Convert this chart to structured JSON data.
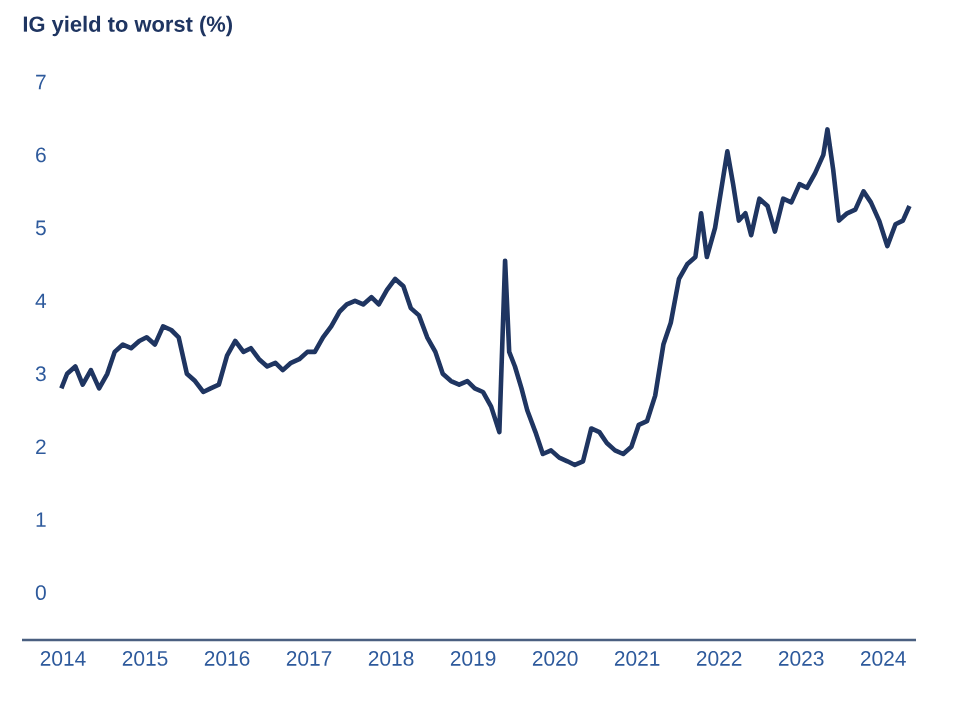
{
  "chart_data": {
    "type": "line",
    "title": "IG yield to worst (%)",
    "x": [
      2013.98,
      2014.05,
      2014.15,
      2014.24,
      2014.34,
      2014.44,
      2014.54,
      2014.63,
      2014.73,
      2014.83,
      2014.93,
      2015.02,
      2015.12,
      2015.22,
      2015.32,
      2015.41,
      2015.51,
      2015.61,
      2015.71,
      2015.8,
      2015.9,
      2016.0,
      2016.1,
      2016.2,
      2016.29,
      2016.39,
      2016.49,
      2016.59,
      2016.68,
      2016.78,
      2016.88,
      2016.98,
      2017.07,
      2017.17,
      2017.27,
      2017.37,
      2017.46,
      2017.56,
      2017.66,
      2017.76,
      2017.85,
      2017.95,
      2018.05,
      2018.15,
      2018.24,
      2018.34,
      2018.44,
      2018.54,
      2018.63,
      2018.73,
      2018.83,
      2018.93,
      2019.02,
      2019.12,
      2019.22,
      2019.32,
      2019.39,
      2019.44,
      2019.51,
      2019.59,
      2019.66,
      2019.76,
      2019.85,
      2019.95,
      2020.05,
      2020.15,
      2020.24,
      2020.34,
      2020.44,
      2020.54,
      2020.63,
      2020.73,
      2020.83,
      2020.93,
      2021.02,
      2021.12,
      2021.22,
      2021.32,
      2021.41,
      2021.51,
      2021.61,
      2021.71,
      2021.78,
      2021.85,
      2021.95,
      2022.05,
      2022.1,
      2022.17,
      2022.24,
      2022.32,
      2022.39,
      2022.49,
      2022.59,
      2022.68,
      2022.78,
      2022.88,
      2022.98,
      2023.07,
      2023.17,
      2023.27,
      2023.32,
      2023.39,
      2023.46,
      2023.56,
      2023.66,
      2023.76,
      2023.85,
      2023.95,
      2024.05,
      2024.15,
      2024.24,
      2024.32
    ],
    "series": [
      {
        "color": "#1f3561",
        "values": [
          2.8,
          3.0,
          3.1,
          2.85,
          3.05,
          2.8,
          3.0,
          3.3,
          3.4,
          3.35,
          3.45,
          3.5,
          3.4,
          3.65,
          3.6,
          3.5,
          3.0,
          2.9,
          2.75,
          2.8,
          2.85,
          3.25,
          3.45,
          3.3,
          3.35,
          3.2,
          3.1,
          3.15,
          3.05,
          3.15,
          3.2,
          3.3,
          3.3,
          3.5,
          3.65,
          3.85,
          3.95,
          4.0,
          3.95,
          4.05,
          3.95,
          4.15,
          4.3,
          4.2,
          3.9,
          3.8,
          3.5,
          3.3,
          3.0,
          2.9,
          2.85,
          2.9,
          2.8,
          2.75,
          2.55,
          2.2,
          4.55,
          3.3,
          3.1,
          2.8,
          2.5,
          2.2,
          1.9,
          1.95,
          1.85,
          1.8,
          1.75,
          1.8,
          2.25,
          2.2,
          2.05,
          1.95,
          1.9,
          2.0,
          2.3,
          2.35,
          2.7,
          3.4,
          3.7,
          4.3,
          4.5,
          4.6,
          5.2,
          4.6,
          5.0,
          5.7,
          6.05,
          5.6,
          5.1,
          5.2,
          4.9,
          5.4,
          5.3,
          4.95,
          5.4,
          5.35,
          5.6,
          5.55,
          5.75,
          6.0,
          6.35,
          5.8,
          5.1,
          5.2,
          5.25,
          5.5,
          5.35,
          5.1,
          4.75,
          5.05,
          5.1,
          5.3
        ]
      }
    ],
    "xlim": [
      2013.5,
      2024.4
    ],
    "ylim": [
      -0.65,
      7
    ],
    "xticks": [
      2014,
      2015,
      2016,
      2017,
      2018,
      2019,
      2020,
      2021,
      2022,
      2023,
      2024
    ],
    "yticks": [
      0,
      1,
      2,
      3,
      4,
      5,
      6,
      7
    ],
    "grid": false
  }
}
